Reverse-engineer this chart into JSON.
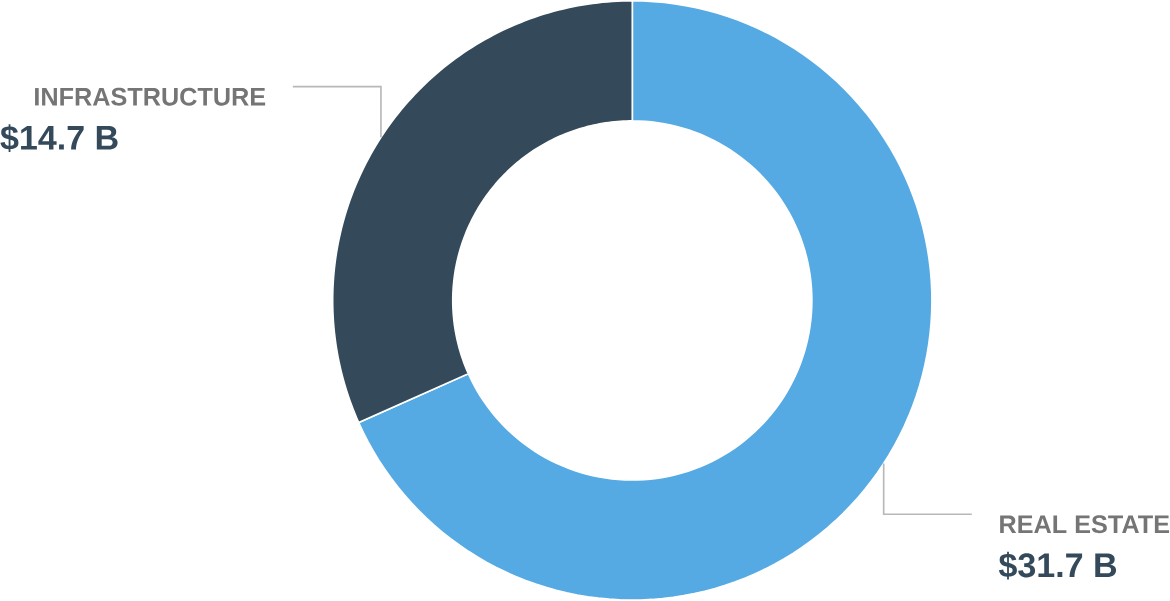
{
  "chart_data": {
    "type": "donut",
    "categories": [
      "REAL ESTATE",
      "INFRASTRUCTURE"
    ],
    "values": [
      31.7,
      14.7
    ],
    "colors": [
      "#55aae4",
      "#344a5b"
    ],
    "value_labels": [
      "$31.7 B",
      "$14.7 B"
    ]
  }
}
